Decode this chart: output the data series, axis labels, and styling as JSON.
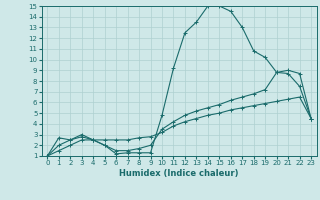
{
  "xlabel": "Humidex (Indice chaleur)",
  "ylabel": "",
  "bg_color": "#cfe8e8",
  "line_color": "#1a6b6b",
  "grid_color": "#afd0d0",
  "xlim": [
    -0.5,
    23.5
  ],
  "ylim": [
    1,
    15
  ],
  "xticks": [
    0,
    1,
    2,
    3,
    4,
    5,
    6,
    7,
    8,
    9,
    10,
    11,
    12,
    13,
    14,
    15,
    16,
    17,
    18,
    19,
    20,
    21,
    22,
    23
  ],
  "yticks": [
    1,
    2,
    3,
    4,
    5,
    6,
    7,
    8,
    9,
    10,
    11,
    12,
    13,
    14,
    15
  ],
  "curve1_x": [
    0,
    1,
    2,
    3,
    4,
    5,
    6,
    7,
    8,
    9,
    10,
    11,
    12,
    13,
    14,
    15,
    16,
    17,
    18,
    19,
    20,
    21,
    22,
    23
  ],
  "curve1_y": [
    1.0,
    2.7,
    2.5,
    3.0,
    2.5,
    2.0,
    1.2,
    1.3,
    1.3,
    1.3,
    4.8,
    9.2,
    12.5,
    13.5,
    15.0,
    15.0,
    14.5,
    13.0,
    10.8,
    10.2,
    8.8,
    8.7,
    7.5,
    4.5
  ],
  "curve2_x": [
    0,
    1,
    2,
    3,
    4,
    5,
    6,
    7,
    8,
    9,
    10,
    11,
    12,
    13,
    14,
    15,
    16,
    17,
    18,
    19,
    20,
    21,
    22,
    23
  ],
  "curve2_y": [
    1.0,
    2.0,
    2.5,
    2.8,
    2.5,
    2.0,
    1.5,
    1.5,
    1.7,
    2.0,
    3.5,
    4.2,
    4.8,
    5.2,
    5.5,
    5.8,
    6.2,
    6.5,
    6.8,
    7.2,
    8.8,
    9.0,
    8.7,
    4.5
  ],
  "curve3_x": [
    0,
    1,
    2,
    3,
    4,
    5,
    6,
    7,
    8,
    9,
    10,
    11,
    12,
    13,
    14,
    15,
    16,
    17,
    18,
    19,
    20,
    21,
    22,
    23
  ],
  "curve3_y": [
    1.0,
    1.5,
    2.0,
    2.5,
    2.5,
    2.5,
    2.5,
    2.5,
    2.7,
    2.8,
    3.2,
    3.8,
    4.2,
    4.5,
    4.8,
    5.0,
    5.3,
    5.5,
    5.7,
    5.9,
    6.1,
    6.3,
    6.5,
    4.5
  ]
}
